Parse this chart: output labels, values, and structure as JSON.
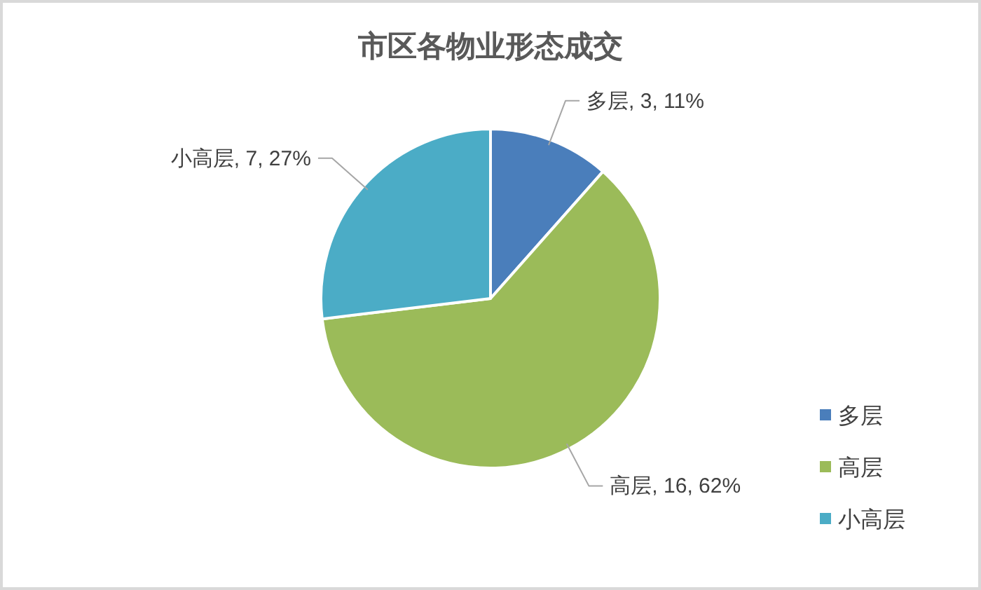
{
  "chart_data": {
    "type": "pie",
    "title": "市区各物业形态成交",
    "categories": [
      "多层",
      "高层",
      "小高层"
    ],
    "values": [
      3,
      16,
      7
    ],
    "colors": [
      "#4a7ebb",
      "#9bbb59",
      "#4bacc6"
    ],
    "value_labels": [
      "多层, 3, 11%",
      "高层, 16, 62%",
      "小高层, 7, 27%"
    ],
    "legend": "bottom right"
  }
}
